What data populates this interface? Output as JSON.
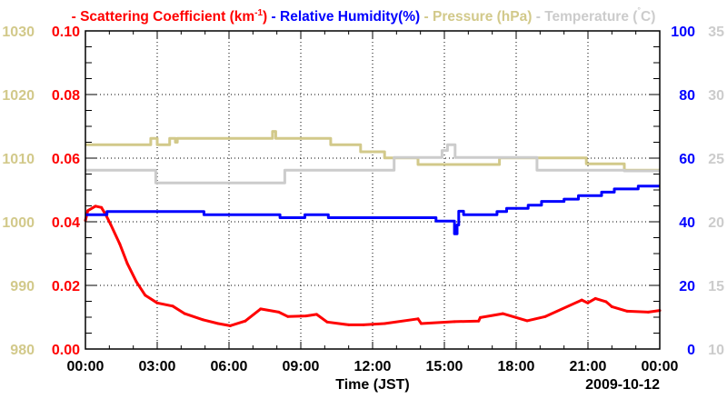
{
  "chart_data": {
    "type": "line",
    "title": "",
    "legend_position": "top",
    "xlabel": "Time (JST)",
    "date_label": "2009-10-12",
    "x_unit": "hours",
    "xlim": [
      0,
      24
    ],
    "x_ticks": [
      0,
      3,
      6,
      9,
      12,
      15,
      18,
      21,
      24
    ],
    "x_tick_labels": [
      "00:00",
      "03:00",
      "06:00",
      "09:00",
      "12:00",
      "15:00",
      "18:00",
      "21:00",
      "00:00"
    ],
    "grid": true,
    "axes": {
      "scattering": {
        "side": "left-inner",
        "ylim": [
          0,
          0.1
        ],
        "ticks": [
          "0.00",
          "0.02",
          "0.04",
          "0.06",
          "0.08",
          "0.10"
        ],
        "color": "#ff0000"
      },
      "pressure": {
        "side": "left-outer",
        "ylim": [
          980,
          1030
        ],
        "ticks": [
          "980",
          "990",
          "1000",
          "1010",
          "1020",
          "1030"
        ],
        "color": "#d2c98a"
      },
      "humidity": {
        "side": "right-inner",
        "ylim": [
          0,
          100
        ],
        "ticks": [
          "0",
          "20",
          "40",
          "60",
          "80",
          "100"
        ],
        "color": "#0000ff"
      },
      "temperature": {
        "side": "right-outer",
        "ylim": [
          10,
          35
        ],
        "ticks": [
          "10",
          "15",
          "20",
          "25",
          "30",
          "35"
        ],
        "color": "#cccccc"
      }
    },
    "legend": {
      "dash": "-",
      "scattering_pre": "Scattering Coefficient (km",
      "scattering_sup": "-1",
      "scattering_post": ")",
      "humidity": "Relative Humidity(%)",
      "pressure": "Pressure (hPa)",
      "temperature_pre": "Temperature (",
      "temperature_deg": "°",
      "temperature_post": "C)"
    },
    "series": [
      {
        "name": "Scattering Coefficient",
        "axis": "scattering",
        "color": "#ff0000",
        "step": false,
        "x": [
          0,
          0.1,
          0.42,
          0.67,
          0.86,
          1.05,
          1.43,
          1.75,
          2.13,
          2.5,
          3.0,
          3.65,
          4.15,
          4.91,
          5.55,
          6.05,
          6.68,
          7.32,
          8.08,
          8.46,
          9.22,
          9.66,
          10.1,
          11.0,
          11.62,
          12.5,
          13.9,
          14.03,
          15.42,
          16.43,
          16.5,
          17.44,
          18.46,
          19.22,
          20.74,
          20.99,
          21.31,
          21.75,
          22.0,
          22.64,
          23.52,
          24
        ],
        "y": [
          0.0404,
          0.0435,
          0.0449,
          0.0445,
          0.0421,
          0.0392,
          0.0331,
          0.0269,
          0.0211,
          0.0169,
          0.0145,
          0.0135,
          0.0111,
          0.0092,
          0.008,
          0.0073,
          0.0088,
          0.0126,
          0.0116,
          0.0102,
          0.0104,
          0.0109,
          0.0085,
          0.0076,
          0.0076,
          0.008,
          0.0095,
          0.008,
          0.0086,
          0.0088,
          0.0099,
          0.0111,
          0.0089,
          0.0102,
          0.0154,
          0.0145,
          0.0159,
          0.0149,
          0.0133,
          0.0119,
          0.0116,
          0.0121
        ]
      },
      {
        "name": "Relative Humidity",
        "axis": "humidity",
        "color": "#0000ff",
        "step": true,
        "x": [
          0,
          0.9,
          4.95,
          8.13,
          9.17,
          10.15,
          14.65,
          15.42,
          15.53,
          15.6,
          15.8,
          17.2,
          17.6,
          18.5,
          19.06,
          20.0,
          20.6,
          21.57,
          22.1,
          23.1,
          24
        ],
        "y": [
          42.2,
          43.2,
          42.2,
          41.3,
          42.2,
          41.3,
          40.2,
          36.2,
          39.0,
          43.3,
          42.2,
          43.2,
          44.2,
          45.2,
          46.4,
          47.1,
          48.2,
          49.3,
          50.3,
          51.2,
          51.2
        ]
      },
      {
        "name": "Pressure",
        "axis": "pressure",
        "color": "#d2c98a",
        "step": true,
        "x": [
          0,
          2.73,
          3.0,
          3.52,
          3.76,
          3.84,
          7.82,
          7.95,
          10.25,
          11.5,
          12.5,
          13.9,
          17.3,
          20.93,
          22.52,
          24
        ],
        "y": [
          1012.1,
          1013.1,
          1012.1,
          1013.1,
          1012.5,
          1013.1,
          1014.2,
          1013.1,
          1012.1,
          1011.0,
          1010.05,
          1009.0,
          1010.05,
          1009.1,
          1008.1,
          1008.1
        ]
      },
      {
        "name": "Temperature",
        "axis": "temperature",
        "color": "#cccccc",
        "step": true,
        "x": [
          0,
          2.94,
          8.33,
          12.9,
          14.9,
          15.13,
          15.45,
          18.87,
          22.52,
          24
        ],
        "y": [
          24.05,
          23.05,
          24.05,
          25.05,
          25.6,
          26.05,
          25.05,
          24.05,
          24.0,
          24.0
        ]
      }
    ]
  }
}
